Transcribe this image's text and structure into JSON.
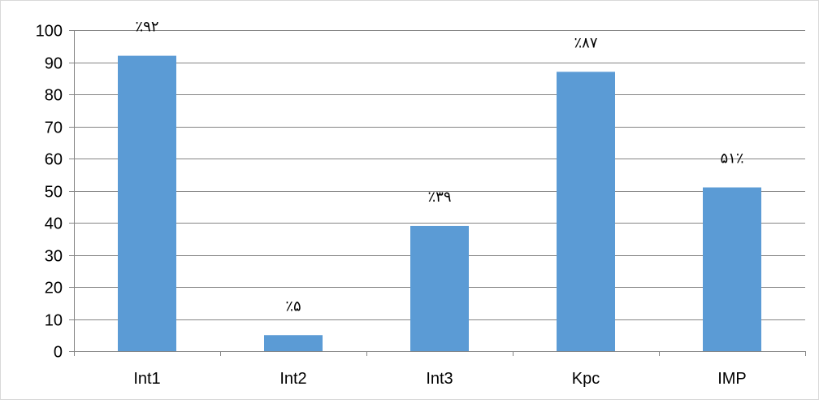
{
  "chart_data": {
    "type": "bar",
    "categories": [
      "Int1",
      "Int2",
      "Int3",
      "Kpc",
      "IMP"
    ],
    "values": [
      92,
      5,
      39,
      87,
      51
    ],
    "data_labels": [
      "٪۹۲",
      "٪۵",
      "٪۳۹",
      "٪۸۷",
      "۵۱٪"
    ],
    "ylim": [
      0,
      100
    ],
    "yticks": [
      0,
      10,
      20,
      30,
      40,
      50,
      60,
      70,
      80,
      90,
      100
    ],
    "grid": true,
    "legend": "none",
    "bar_color": "#5B9BD5",
    "grid_color": "#858585",
    "axis_color": "#858585"
  }
}
